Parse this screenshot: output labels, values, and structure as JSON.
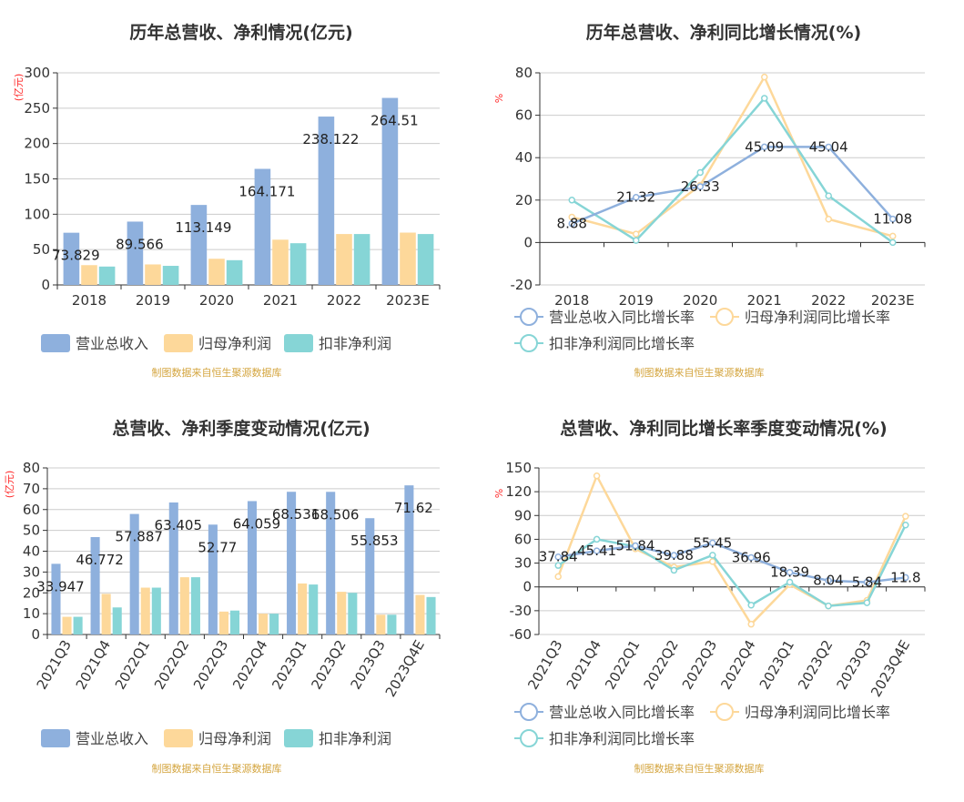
{
  "colors": {
    "revenue": "#8eb0dd",
    "parent": "#fdd89a",
    "deducted": "#86d5d6",
    "source": "#d4a53f",
    "unit": "#ff2a2a",
    "grid": "#cccccc",
    "axis": "#333333"
  },
  "chart_data": [
    {
      "type": "bar",
      "title": "历年总营收、净利情况(亿元)",
      "ylabel": "(亿元)",
      "ylim": [
        0,
        300
      ],
      "yticks": [
        0,
        50,
        100,
        150,
        200,
        250,
        300
      ],
      "categories": [
        "2018",
        "2019",
        "2020",
        "2021",
        "2022",
        "2023E"
      ],
      "series": [
        {
          "name": "营业总收入",
          "values": [
            73.829,
            89.566,
            113.149,
            164.171,
            238.122,
            264.51
          ],
          "labels": [
            "73.829",
            "89.566",
            "113.149",
            "164.171",
            "238.122",
            "264.51"
          ]
        },
        {
          "name": "归母净利润",
          "values": [
            28,
            29,
            37,
            64,
            72,
            74
          ]
        },
        {
          "name": "扣非净利润",
          "values": [
            26,
            27,
            35,
            59,
            72,
            72
          ]
        }
      ],
      "legend": "bottom",
      "source": "制图数据来自恒生聚源数据库"
    },
    {
      "type": "line",
      "title": "历年总营收、净利同比增长情况(%)",
      "ylabel": "%",
      "ylim": [
        -20,
        80
      ],
      "yticks": [
        -20,
        0,
        20,
        40,
        60,
        80
      ],
      "categories": [
        "2018",
        "2019",
        "2020",
        "2021",
        "2022",
        "2023E"
      ],
      "series": [
        {
          "name": "营业总收入同比增长率",
          "values": [
            8.88,
            21.32,
            26.33,
            45.09,
            45.04,
            11.08
          ],
          "labels": [
            "8.88",
            "21.32",
            "26.33",
            "45.09",
            "45.04",
            "11.08"
          ]
        },
        {
          "name": "归母净利润同比增长率",
          "values": [
            12,
            4,
            27,
            78,
            11,
            3
          ]
        },
        {
          "name": "扣非净利润同比增长率",
          "values": [
            20,
            1,
            33,
            68,
            22,
            0
          ]
        }
      ],
      "legend": "bottom",
      "source": "制图数据来自恒生聚源数据库"
    },
    {
      "type": "bar",
      "title": "总营收、净利季度变动情况(亿元)",
      "ylabel": "(亿元)",
      "ylim": [
        0,
        80
      ],
      "yticks": [
        0,
        10,
        20,
        30,
        40,
        50,
        60,
        70,
        80
      ],
      "categories": [
        "2021Q3",
        "2021Q4",
        "2022Q1",
        "2022Q2",
        "2022Q3",
        "2022Q4",
        "2023Q1",
        "2023Q2",
        "2023Q3",
        "2023Q4E"
      ],
      "series": [
        {
          "name": "营业总收入",
          "values": [
            33.947,
            46.772,
            57.887,
            63.405,
            52.77,
            64.059,
            68.531,
            68.506,
            55.853,
            71.62
          ],
          "labels": [
            "33.947",
            "46.772",
            "57.887",
            "63.405",
            "52.77",
            "64.059",
            "68.531",
            "68.506",
            "55.853",
            "71.62"
          ]
        },
        {
          "name": "归母净利润",
          "values": [
            8.5,
            19.5,
            22.5,
            27.5,
            11,
            10,
            24.5,
            20.5,
            9.5,
            19
          ]
        },
        {
          "name": "扣非净利润",
          "values": [
            8.5,
            13,
            22.5,
            27.5,
            11.5,
            10,
            24,
            20,
            9.5,
            18
          ]
        }
      ],
      "legend": "bottom",
      "source": "制图数据来自恒生聚源数据库"
    },
    {
      "type": "line",
      "title": "总营收、净利同比增长率季度变动情况(%)",
      "ylabel": "%",
      "ylim": [
        -60,
        150
      ],
      "yticks": [
        -60,
        -30,
        0,
        30,
        60,
        90,
        120,
        150
      ],
      "categories": [
        "2021Q3",
        "2021Q4",
        "2022Q1",
        "2022Q2",
        "2022Q3",
        "2022Q4",
        "2023Q1",
        "2023Q2",
        "2023Q3",
        "2023Q4E"
      ],
      "series": [
        {
          "name": "营业总收入同比增长率",
          "values": [
            37.84,
            45.41,
            51.84,
            39.88,
            55.45,
            36.96,
            18.39,
            8.04,
            5.84,
            11.8
          ],
          "labels": [
            "37.84",
            "45.41",
            "51.84",
            "39.88",
            "55.45",
            "36.96",
            "18.39",
            "8.04",
            "5.84",
            "11.8"
          ]
        },
        {
          "name": "归母净利润同比增长率",
          "values": [
            13,
            140,
            48,
            25,
            32,
            -47,
            3,
            -24,
            -17,
            89
          ]
        },
        {
          "name": "扣非净利润同比增长率",
          "values": [
            27,
            60,
            51,
            21,
            40,
            -23,
            6,
            -24,
            -20,
            78
          ]
        }
      ],
      "legend": "bottom",
      "source": "制图数据来自恒生聚源数据库"
    }
  ]
}
